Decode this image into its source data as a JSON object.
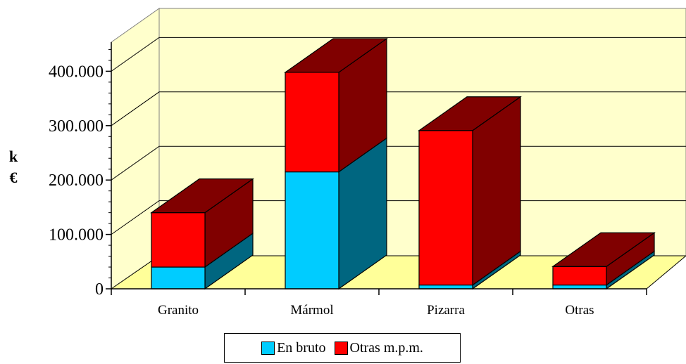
{
  "chart_data": {
    "type": "bar",
    "stacked": true,
    "three_d": true,
    "categories": [
      "Granito",
      "Mármol",
      "Pizarra",
      "Otras"
    ],
    "series": [
      {
        "name": "En bruto",
        "values": [
          40000,
          215000,
          7000,
          7000
        ],
        "color": "#00CCFF",
        "side_color": "#006680"
      },
      {
        "name": "Otras m.p.m.",
        "values": [
          100000,
          183000,
          284000,
          34000
        ],
        "color": "#FF0000",
        "side_color": "#800000"
      }
    ],
    "y_tick_labels": [
      "0",
      "100.000",
      "200.000",
      "300.000",
      "400.000"
    ],
    "ylabel_line1": "k",
    "ylabel_line2": "€",
    "ylim": [
      0,
      500000
    ],
    "grid": true,
    "wall_color": "#FFFFCC",
    "legend_position": "bottom"
  }
}
